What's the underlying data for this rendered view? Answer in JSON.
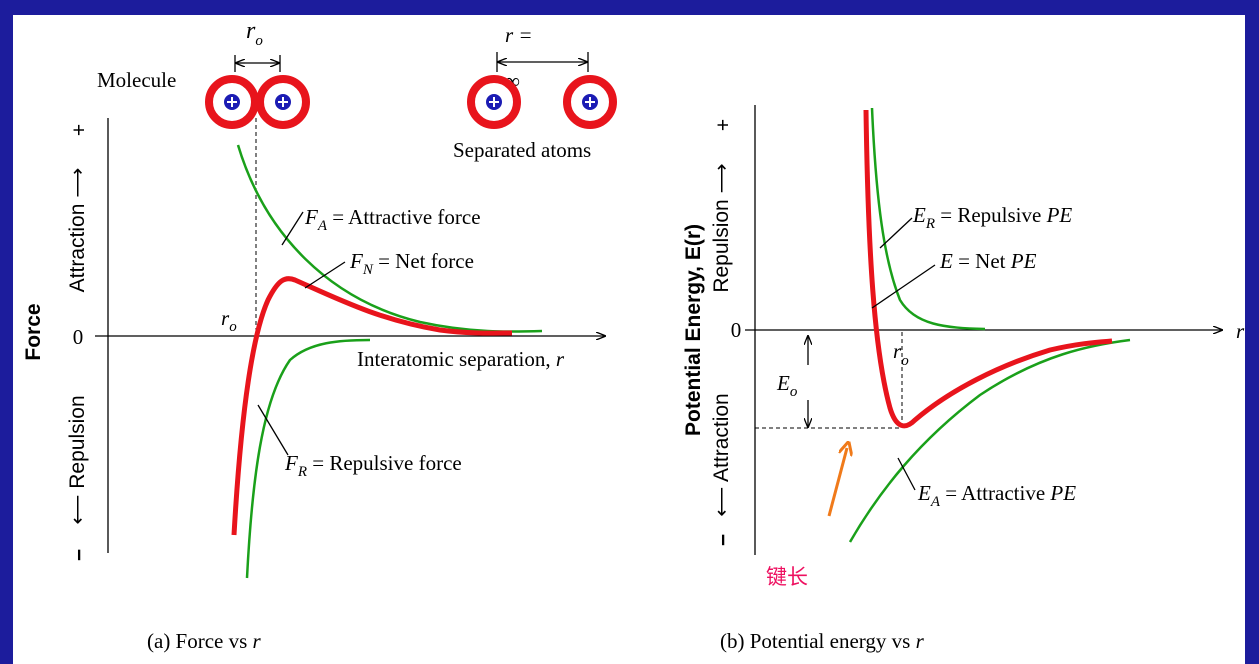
{
  "panel_a": {
    "r_o_top": {
      "symbol": "r",
      "subscript": "o"
    },
    "molecule": "Molecule",
    "separation_top": "r =",
    "infinity": "∞",
    "separated_atoms": "Separated atoms",
    "plus": "+",
    "zero": "0",
    "minus": "−",
    "attraction": "Attraction ⟶",
    "repulsion": "⟵ Repulsion",
    "axis_title": "Force",
    "f_a": {
      "symbol": "F",
      "subscript": "A",
      "text": " = Attractive force"
    },
    "f_n": {
      "symbol": "F",
      "subscript": "N",
      "text": " = Net force"
    },
    "f_r": {
      "symbol": "F",
      "subscript": "R",
      "text": " = Repulsive force"
    },
    "r_o_axis": {
      "symbol": "r",
      "subscript": "o"
    },
    "x_axis": {
      "text": "Interatomic separation, ",
      "symbol": "r"
    },
    "caption": {
      "text": "(a) Force vs ",
      "symbol": "r"
    }
  },
  "panel_b": {
    "plus": "+",
    "zero": "0",
    "minus": "−",
    "repulsion": "Repulsion ⟶",
    "attraction": "⟵ Attraction",
    "axis_title": "Potential Energy, E(r)",
    "x_symbol": "r",
    "e_r": {
      "symbol": "E",
      "subscript": "R",
      "text": " = Repulsive ",
      "unit": "PE"
    },
    "e_net": {
      "symbol": "E",
      "text": " = Net  ",
      "unit": "PE"
    },
    "e_a": {
      "symbol": "E",
      "subscript": "A",
      "text": " = Attractive ",
      "unit": "PE"
    },
    "r_o": {
      "symbol": "r",
      "subscript": "o"
    },
    "e_o": {
      "symbol": "E",
      "subscript": "o"
    },
    "bond_length": "键长",
    "caption": {
      "text": "(b) Potential energy vs ",
      "symbol": "r"
    }
  }
}
